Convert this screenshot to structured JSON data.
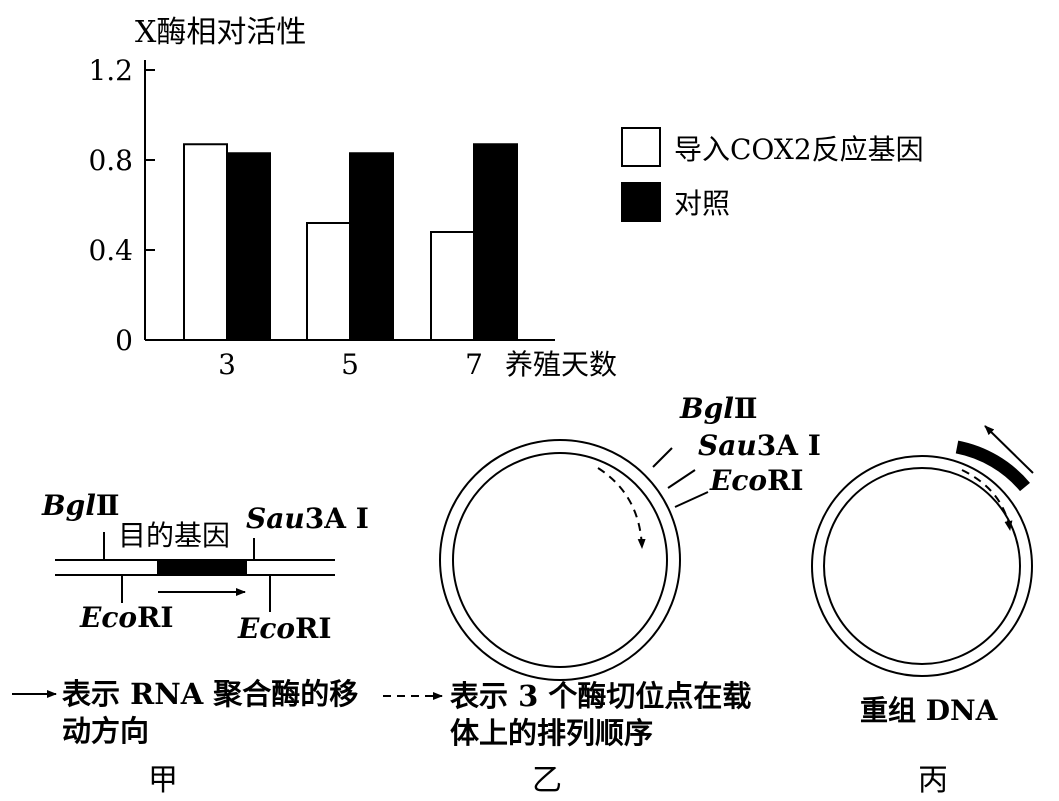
{
  "chart_data": {
    "type": "bar",
    "ylabel": "X酶相对活性",
    "xlabel": "养殖天数",
    "categories": [
      "3",
      "5",
      "7"
    ],
    "yticks": [
      "1.2",
      "0.8",
      "0.4",
      "0"
    ],
    "ylim": [
      0,
      1.2
    ],
    "series": [
      {
        "name": "导入COX2反应基因",
        "values": [
          0.87,
          0.52,
          0.48
        ],
        "color": "#ffffff"
      },
      {
        "name": "对照",
        "values": [
          0.83,
          0.83,
          0.87
        ],
        "color": "#000000"
      }
    ],
    "legend_position": "right"
  },
  "jia": {
    "bgl": "Bgl",
    "roman2": "Ⅱ",
    "gene": "目的基因",
    "sau_it": "Sau",
    "sau_rest": "3A I",
    "eco_it": "Eco",
    "eco_rest": "RI",
    "legend_arrow": "表示 RNA 聚合酶的移",
    "legend_arrow2": "动方向",
    "label": "甲"
  },
  "yi": {
    "bgl": "Bgl",
    "roman2": "Ⅱ",
    "sau_it": "Sau",
    "sau_rest": "3A I",
    "eco_it": "Eco",
    "eco_rest": "RI",
    "legend_dash": "表示 3 个酶切位点在载",
    "legend_dash2": "体上的排列顺序",
    "label": "乙"
  },
  "bing": {
    "caption": "重组 DNA",
    "label": "丙"
  }
}
